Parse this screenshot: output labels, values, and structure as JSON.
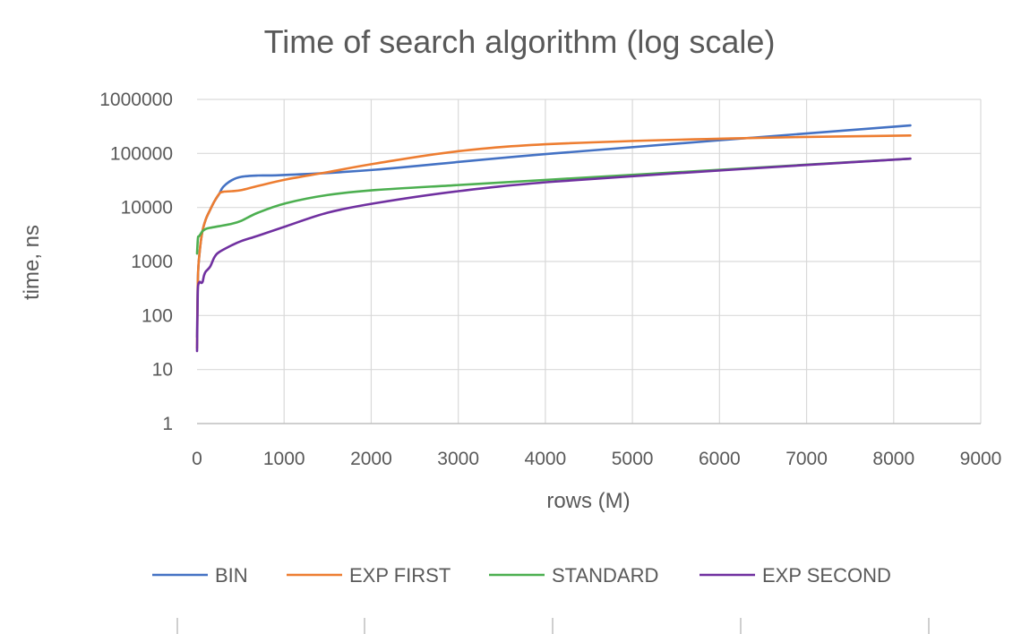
{
  "chart_data": {
    "type": "line",
    "title": "Time of search algorithm (log scale)",
    "xlabel": "rows (M)",
    "ylabel": "time, ns",
    "xlim": [
      0,
      9000
    ],
    "ylim": [
      1,
      1000000
    ],
    "yscale": "log",
    "grid": true,
    "legend_position": "bottom",
    "x_ticks": [
      0,
      1000,
      2000,
      3000,
      4000,
      5000,
      6000,
      7000,
      8000,
      9000
    ],
    "x_tick_labels": [
      "0",
      "1000",
      "2000",
      "3000",
      "4000",
      "5000",
      "6000",
      "7000",
      "8000",
      "9000"
    ],
    "y_ticks": [
      1,
      10,
      100,
      1000,
      10000,
      100000,
      1000000
    ],
    "y_tick_labels": [
      "1",
      "10",
      "100",
      "1000",
      "10000",
      "100000",
      "1000000"
    ],
    "series": [
      {
        "name": "BIN",
        "color": "#4472C4",
        "x": [
          0,
          10,
          30,
          60,
          100,
          150,
          200,
          256,
          300,
          400,
          512,
          700,
          1024,
          2048,
          4096,
          8192
        ],
        "y": [
          40,
          500,
          1500,
          3500,
          6000,
          9000,
          13000,
          18000,
          24000,
          32000,
          37000,
          39000,
          40000,
          50000,
          100000,
          330000
        ]
      },
      {
        "name": "EXP FIRST",
        "color": "#ED7D31",
        "x": [
          0,
          10,
          30,
          60,
          100,
          150,
          200,
          256,
          300,
          400,
          512,
          700,
          1024,
          1500,
          2048,
          3000,
          4096,
          6144,
          8192
        ],
        "y": [
          25,
          500,
          1500,
          3500,
          6000,
          9000,
          13000,
          18000,
          19500,
          20000,
          21000,
          25000,
          33000,
          45000,
          65000,
          110000,
          150000,
          190000,
          215000
        ]
      },
      {
        "name": "STANDARD",
        "color": "#4CAF50",
        "x": [
          0,
          10,
          20,
          40,
          60,
          100,
          150,
          256,
          400,
          512,
          700,
          1024,
          1500,
          2048,
          3000,
          4096,
          8192
        ],
        "y": [
          1400,
          2700,
          2900,
          3200,
          3600,
          4000,
          4200,
          4500,
          5000,
          5700,
          8000,
          12000,
          17000,
          21000,
          26000,
          33000,
          80000
        ]
      },
      {
        "name": "EXP SECOND",
        "color": "#7030A0",
        "x": [
          0,
          8,
          16,
          32,
          48,
          64,
          80,
          100,
          150,
          200,
          256,
          400,
          512,
          700,
          1024,
          1500,
          2048,
          3000,
          4096,
          6144,
          8192
        ],
        "y": [
          22,
          250,
          380,
          420,
          400,
          420,
          550,
          650,
          800,
          1200,
          1500,
          2000,
          2400,
          3000,
          4500,
          8000,
          12000,
          20000,
          30000,
          50000,
          80000
        ]
      }
    ]
  }
}
